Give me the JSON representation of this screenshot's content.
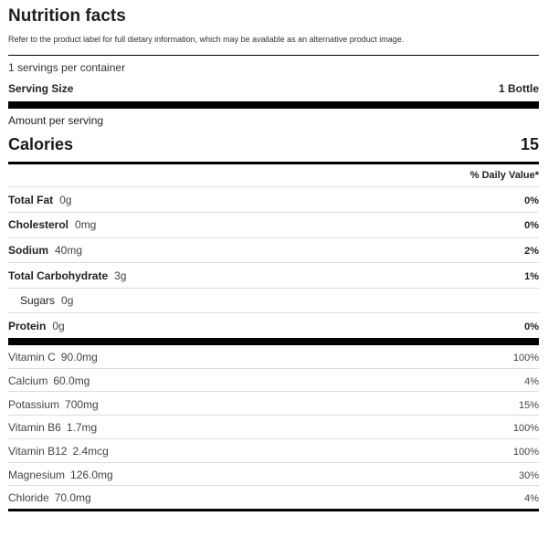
{
  "header": {
    "title": "Nutrition facts",
    "subtitle": "Refer to the product label for full dietary information, which may be available as an alternative product image."
  },
  "serving": {
    "servings_per_container": "1 servings per container",
    "size_label": "Serving Size",
    "size_value": "1 Bottle"
  },
  "calories": {
    "amount_per_serving": "Amount per serving",
    "label": "Calories",
    "value": "15"
  },
  "daily_value_header": "% Daily Value*",
  "nutrients": [
    {
      "name": "Total Fat",
      "amount": "0g",
      "dv": "0%"
    },
    {
      "name": "Cholesterol",
      "amount": "0mg",
      "dv": "0%"
    },
    {
      "name": "Sodium",
      "amount": "40mg",
      "dv": "2%"
    },
    {
      "name": "Total Carbohydrate",
      "amount": "3g",
      "dv": "1%"
    },
    {
      "name": "Sugars",
      "amount": "0g",
      "dv": ""
    },
    {
      "name": "Protein",
      "amount": "0g",
      "dv": "0%"
    }
  ],
  "vitamins": [
    {
      "name": "Vitamin C",
      "amount": "90.0mg",
      "dv": "100%"
    },
    {
      "name": "Calcium",
      "amount": "60.0mg",
      "dv": "4%"
    },
    {
      "name": "Potassium",
      "amount": "700mg",
      "dv": "15%"
    },
    {
      "name": "Vitamin B6",
      "amount": "1.7mg",
      "dv": "100%"
    },
    {
      "name": "Vitamin B12",
      "amount": "2.4mcg",
      "dv": "100%"
    },
    {
      "name": "Magnesium",
      "amount": "126.0mg",
      "dv": "30%"
    },
    {
      "name": "Chloride",
      "amount": "70.0mg",
      "dv": "4%"
    }
  ]
}
